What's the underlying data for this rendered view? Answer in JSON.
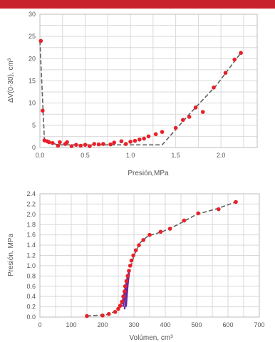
{
  "colors": {
    "band": "#c8232c",
    "point": "#e8202a",
    "fit": "#606060",
    "grid": "#d9d9d9",
    "loop": "#6a2aa0"
  },
  "chart_data": [
    {
      "type": "scatter",
      "title": "",
      "xlabel": "Presión,MPa",
      "ylabel": "ΔV(0-30), cm³",
      "xlim": [
        0,
        2.4
      ],
      "ylim": [
        0,
        30
      ],
      "xticks": [
        "0.0",
        "0.5",
        "1.0",
        "1.5",
        "2.0"
      ],
      "xtick_values": [
        0,
        0.5,
        1.0,
        1.5,
        2.0
      ],
      "yticks": [
        "0",
        "5",
        "10",
        "15",
        "20",
        "25",
        "30"
      ],
      "ytick_values": [
        0,
        5,
        10,
        15,
        20,
        25,
        30
      ],
      "grid": true,
      "points": [
        [
          0.01,
          24.0
        ],
        [
          0.03,
          8.3
        ],
        [
          0.05,
          1.6
        ],
        [
          0.08,
          1.4
        ],
        [
          0.1,
          1.2
        ],
        [
          0.14,
          1.0
        ],
        [
          0.2,
          0.4
        ],
        [
          0.22,
          1.2
        ],
        [
          0.28,
          0.8
        ],
        [
          0.3,
          1.2
        ],
        [
          0.35,
          0.3
        ],
        [
          0.4,
          0.6
        ],
        [
          0.45,
          0.4
        ],
        [
          0.5,
          0.6
        ],
        [
          0.55,
          0.3
        ],
        [
          0.6,
          0.8
        ],
        [
          0.65,
          0.7
        ],
        [
          0.7,
          0.8
        ],
        [
          0.78,
          0.7
        ],
        [
          0.82,
          1.1
        ],
        [
          0.9,
          1.4
        ],
        [
          0.95,
          0.8
        ],
        [
          1.0,
          1.3
        ],
        [
          1.05,
          1.5
        ],
        [
          1.1,
          1.8
        ],
        [
          1.15,
          2.0
        ],
        [
          1.2,
          2.5
        ],
        [
          1.28,
          3.0
        ],
        [
          1.35,
          3.5
        ],
        [
          1.5,
          4.4
        ],
        [
          1.58,
          6.2
        ],
        [
          1.65,
          6.9
        ],
        [
          1.72,
          9.0
        ],
        [
          1.8,
          8.0
        ],
        [
          1.92,
          13.5
        ],
        [
          2.05,
          16.8
        ],
        [
          2.15,
          19.8
        ],
        [
          2.22,
          21.3
        ]
      ],
      "fit_line": [
        [
          0.0,
          24.0
        ],
        [
          0.05,
          1.5
        ],
        [
          0.2,
          0.6
        ],
        [
          1.35,
          0.6
        ],
        [
          1.65,
          7.5
        ],
        [
          1.95,
          14.0
        ],
        [
          2.22,
          21.3
        ]
      ]
    },
    {
      "type": "scatter",
      "title": "",
      "xlabel": "Volúmen, cm³",
      "ylabel": "Presión, MPa",
      "xlim": [
        0,
        700
      ],
      "ylim": [
        0,
        2.4
      ],
      "xticks": [
        "0",
        "100",
        "200",
        "300",
        "400",
        "500",
        "600",
        "700"
      ],
      "xtick_values": [
        0,
        100,
        200,
        300,
        400,
        500,
        600,
        700
      ],
      "yticks": [
        "0.0",
        "0.2",
        "0.4",
        "0.6",
        "0.8",
        "1.0",
        "1.2",
        "1.4",
        "1.6",
        "1.8",
        "2.0",
        "2.2",
        "2.4"
      ],
      "ytick_values": [
        0,
        0.2,
        0.4,
        0.6,
        0.8,
        1.0,
        1.2,
        1.4,
        1.6,
        1.8,
        2.0,
        2.2,
        2.4
      ],
      "grid": true,
      "points": [
        [
          150,
          0.02
        ],
        [
          200,
          0.03
        ],
        [
          220,
          0.06
        ],
        [
          240,
          0.1
        ],
        [
          250,
          0.16
        ],
        [
          256,
          0.22
        ],
        [
          262,
          0.3
        ],
        [
          266,
          0.4
        ],
        [
          270,
          0.5
        ],
        [
          272,
          0.6
        ],
        [
          276,
          0.7
        ],
        [
          280,
          0.8
        ],
        [
          284,
          0.9
        ],
        [
          288,
          1.0
        ],
        [
          292,
          1.1
        ],
        [
          298,
          1.2
        ],
        [
          306,
          1.3
        ],
        [
          316,
          1.4
        ],
        [
          330,
          1.5
        ],
        [
          350,
          1.6
        ],
        [
          385,
          1.66
        ],
        [
          415,
          1.72
        ],
        [
          460,
          1.88
        ],
        [
          505,
          2.02
        ],
        [
          570,
          2.1
        ],
        [
          625,
          2.24
        ]
      ],
      "fit_line": [
        [
          150,
          0.02
        ],
        [
          220,
          0.05
        ],
        [
          250,
          0.15
        ],
        [
          270,
          0.45
        ],
        [
          285,
          0.85
        ],
        [
          300,
          1.2
        ],
        [
          320,
          1.45
        ],
        [
          345,
          1.58
        ],
        [
          390,
          1.66
        ],
        [
          440,
          1.8
        ],
        [
          500,
          2.0
        ],
        [
          560,
          2.1
        ],
        [
          625,
          2.24
        ]
      ],
      "loop_lines": [
        [
          [
            265,
            0.2
          ],
          [
            284,
            0.9
          ]
        ],
        [
          [
            270,
            0.15
          ],
          [
            285,
            0.85
          ]
        ],
        [
          [
            275,
            0.2
          ],
          [
            282,
            0.75
          ]
        ],
        [
          [
            262,
            0.25
          ],
          [
            280,
            0.8
          ]
        ]
      ]
    }
  ]
}
